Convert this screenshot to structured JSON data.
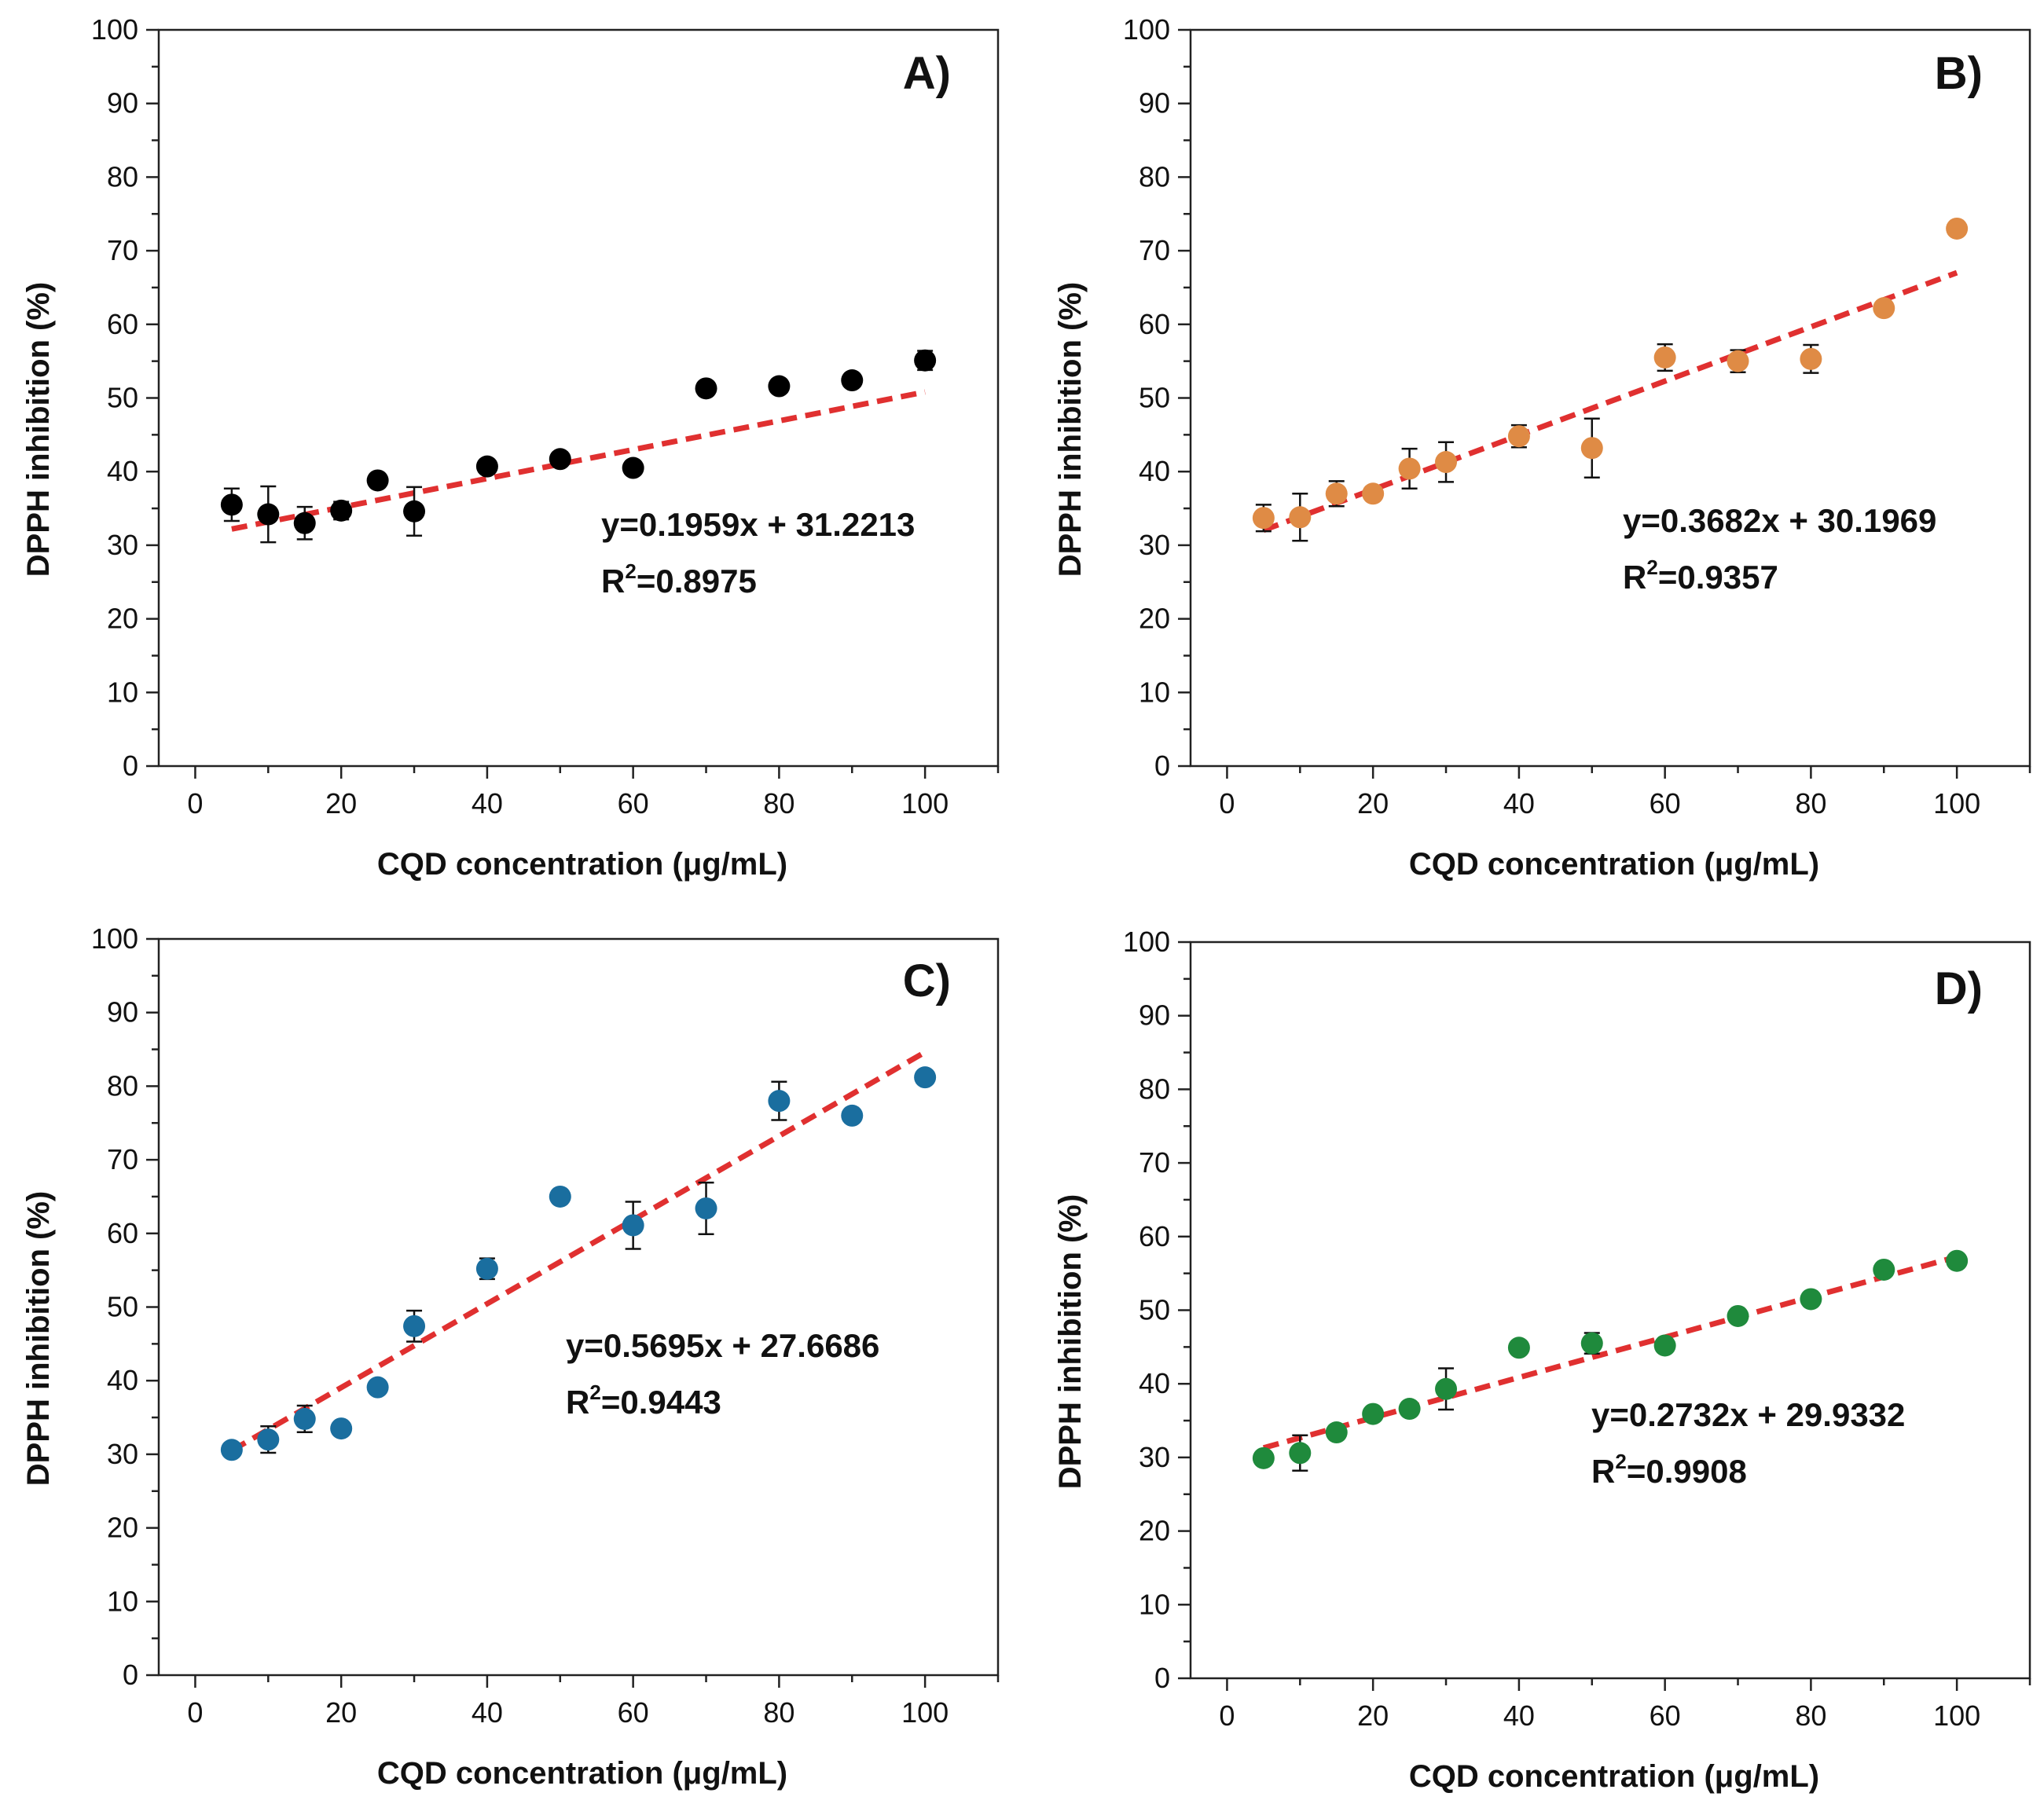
{
  "chart_data": [
    {
      "type": "scatter",
      "panel_label": "A)",
      "xlabel": "CQD concentration (μg/mL)",
      "ylabel": "DPPH inhibition (%)",
      "xlim": [
        -5,
        110
      ],
      "ylim": [
        0,
        100
      ],
      "xticks": [
        "0",
        "20",
        "40",
        "60",
        "80",
        "100"
      ],
      "yticks": [
        "0",
        "10",
        "20",
        "30",
        "40",
        "50",
        "60",
        "70",
        "80",
        "90",
        "100"
      ],
      "point_color": "#000000",
      "fit_color": "#e03030",
      "x": [
        5,
        10,
        15,
        20,
        25,
        30,
        40,
        50,
        60,
        70,
        80,
        90,
        100
      ],
      "y": [
        35.5,
        34.2,
        33.0,
        34.7,
        38.8,
        34.6,
        40.7,
        41.7,
        40.5,
        51.3,
        51.6,
        52.4,
        55.1
      ],
      "error": [
        2.2,
        3.8,
        2.2,
        1.2,
        0.6,
        3.3,
        0.6,
        0.5,
        0.4,
        0.5,
        0.5,
        0.5,
        1.3
      ],
      "fit": {
        "slope": 0.1959,
        "intercept": 31.2213,
        "x_range": [
          5,
          100
        ]
      },
      "equation": "y=0.1959x + 31.2213",
      "r2_prefix": "R",
      "r2_sup": "2",
      "r2_value": "=0.8975"
    },
    {
      "type": "scatter",
      "panel_label": "B)",
      "xlabel": "CQD concentration (μg/mL)",
      "ylabel": "DPPH inhibition (%)",
      "xlim": [
        -5,
        110
      ],
      "ylim": [
        0,
        100
      ],
      "xticks": [
        "0",
        "20",
        "40",
        "60",
        "80",
        "100"
      ],
      "yticks": [
        "0",
        "10",
        "20",
        "30",
        "40",
        "50",
        "60",
        "70",
        "80",
        "90",
        "100"
      ],
      "point_color": "#df8b45",
      "fit_color": "#e03030",
      "x": [
        5,
        10,
        15,
        20,
        25,
        30,
        40,
        50,
        60,
        70,
        80,
        90,
        100
      ],
      "y": [
        33.7,
        33.8,
        37.0,
        37.0,
        40.4,
        41.3,
        44.8,
        43.2,
        55.5,
        55.0,
        55.3,
        62.2,
        73.0
      ],
      "error": [
        1.8,
        3.2,
        1.7,
        0.6,
        2.7,
        2.7,
        1.5,
        4.0,
        1.8,
        1.5,
        1.9,
        0.6,
        0.7
      ],
      "fit": {
        "slope": 0.3682,
        "intercept": 30.1969,
        "x_range": [
          5,
          100
        ]
      },
      "equation": "y=0.3682x + 30.1969",
      "r2_prefix": "R",
      "r2_sup": "2",
      "r2_value": "=0.9357"
    },
    {
      "type": "scatter",
      "panel_label": "C)",
      "xlabel": "CQD concentration (μg/mL)",
      "ylabel": "DPPH inhibition (%)",
      "xlim": [
        -5,
        110
      ],
      "ylim": [
        0,
        100
      ],
      "xticks": [
        "0",
        "20",
        "40",
        "60",
        "80",
        "100"
      ],
      "yticks": [
        "0",
        "10",
        "20",
        "30",
        "40",
        "50",
        "60",
        "70",
        "80",
        "90",
        "100"
      ],
      "point_color": "#1a6e9f",
      "fit_color": "#e03030",
      "x": [
        5,
        10,
        15,
        20,
        25,
        30,
        40,
        50,
        60,
        70,
        80,
        90,
        100
      ],
      "y": [
        30.6,
        32.0,
        34.8,
        33.5,
        39.1,
        47.4,
        55.2,
        65.0,
        61.1,
        63.4,
        78.0,
        76.0,
        81.2
      ],
      "error": [
        0.6,
        1.8,
        1.8,
        0.6,
        0.6,
        2.1,
        1.4,
        0.6,
        3.2,
        3.5,
        2.6,
        0.6,
        0.6
      ],
      "fit": {
        "slope": 0.5695,
        "intercept": 27.6686,
        "x_range": [
          5,
          100
        ]
      },
      "equation": "y=0.5695x + 27.6686",
      "r2_prefix": "R",
      "r2_sup": "2",
      "r2_value": "=0.9443"
    },
    {
      "type": "scatter",
      "panel_label": "D)",
      "xlabel": "CQD concentration (μg/mL)",
      "ylabel": "DPPH inhibition (%)",
      "xlim": [
        -5,
        110
      ],
      "ylim": [
        0,
        100
      ],
      "xticks": [
        "0",
        "20",
        "40",
        "60",
        "80",
        "100"
      ],
      "yticks": [
        "0",
        "10",
        "20",
        "30",
        "40",
        "50",
        "60",
        "70",
        "80",
        "90",
        "100"
      ],
      "point_color": "#1f8a3c",
      "fit_color": "#e03030",
      "x": [
        5,
        10,
        15,
        20,
        25,
        30,
        40,
        50,
        60,
        70,
        80,
        90,
        100
      ],
      "y": [
        29.9,
        30.6,
        33.4,
        35.9,
        36.6,
        39.3,
        44.9,
        45.5,
        45.2,
        49.2,
        51.5,
        55.5,
        56.7
      ],
      "error": [
        0.6,
        2.4,
        0.7,
        0.6,
        0.6,
        2.8,
        0.8,
        1.4,
        0.6,
        0.6,
        0.6,
        0.6,
        0.5
      ],
      "fit": {
        "slope": 0.2732,
        "intercept": 29.9332,
        "x_range": [
          5,
          100
        ]
      },
      "equation": "y=0.2732x + 29.9332",
      "r2_prefix": "R",
      "r2_sup": "2",
      "r2_value": "=0.9908"
    }
  ]
}
